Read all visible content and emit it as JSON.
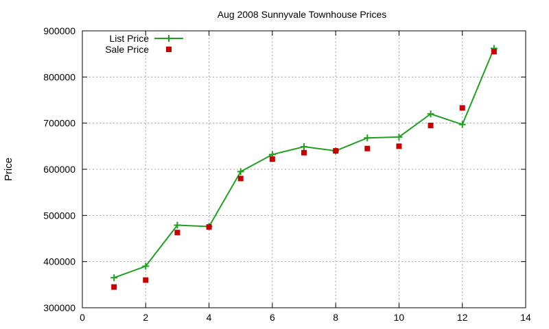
{
  "chart_data": {
    "type": "line",
    "title": "Aug 2008 Sunnyvale Townhouse Prices",
    "xlabel": "",
    "ylabel": "Price",
    "xlim": [
      0,
      14
    ],
    "ylim": [
      300000,
      900000
    ],
    "xticks": [
      0,
      2,
      4,
      6,
      8,
      10,
      12,
      14
    ],
    "yticks": [
      300000,
      400000,
      500000,
      600000,
      700000,
      800000,
      900000
    ],
    "grid": true,
    "legend_position": "top-left",
    "series": [
      {
        "name": "List Price",
        "style": "line-with-plus-markers",
        "color": "#1ea01e",
        "x": [
          1,
          2,
          3,
          4,
          5,
          6,
          7,
          8,
          9,
          10,
          11,
          12,
          13
        ],
        "y": [
          365000,
          390000,
          479000,
          476000,
          595000,
          632000,
          649000,
          640000,
          668000,
          670000,
          720000,
          697000,
          862000
        ]
      },
      {
        "name": "Sale Price",
        "style": "square-markers",
        "color": "#c80000",
        "x": [
          1,
          2,
          3,
          4,
          5,
          6,
          7,
          8,
          9,
          10,
          11,
          12,
          13
        ],
        "y": [
          345000,
          360000,
          463000,
          475000,
          580000,
          622000,
          636000,
          640000,
          645000,
          650000,
          695000,
          733000,
          855000
        ]
      }
    ]
  }
}
